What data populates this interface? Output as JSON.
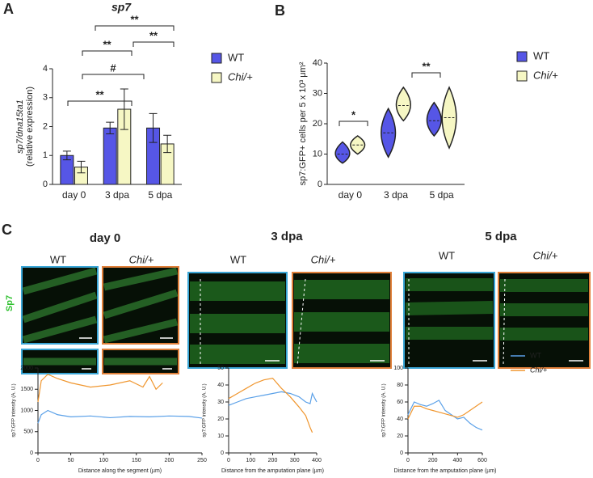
{
  "panels": [
    "A",
    "B",
    "C"
  ],
  "channel": "Sp7",
  "image_labels": [
    "WT",
    "Chi/+",
    "WT",
    "Chi/+",
    "WT",
    "Chi/+"
  ],
  "chart_data": [
    {
      "type": "bar",
      "title": "sp7",
      "y_label": [
        "sp7/dna15ta1",
        "(relative expression)"
      ],
      "categories": [
        "day 0",
        "3 dpa",
        "5 dpa"
      ],
      "series": [
        {
          "name": "WT",
          "color": "#5656e6",
          "values": [
            1.0,
            1.95,
            1.95
          ],
          "errors": [
            0.15,
            0.2,
            0.5
          ]
        },
        {
          "name": "Chi/+",
          "color": "#f6f7c4",
          "values": [
            0.6,
            2.6,
            1.4
          ],
          "errors": [
            0.2,
            0.7,
            0.3
          ]
        }
      ],
      "ylim": [
        0,
        4
      ],
      "yticks": [
        0,
        1,
        2,
        3,
        4
      ],
      "annotations": [
        "**",
        "#",
        "**",
        "**",
        "**"
      ]
    },
    {
      "type": "violin",
      "y_label": "sp7:GFP+ cells per 5 x 10³ μm²",
      "categories": [
        "day 0",
        "3 dpa",
        "5 dpa"
      ],
      "series": [
        {
          "name": "WT",
          "color": "#5656e6",
          "values": [
            10,
            17,
            21
          ],
          "min": [
            7,
            9,
            16
          ],
          "max": [
            14,
            25,
            27
          ]
        },
        {
          "name": "Chi/+",
          "color": "#f6f7c4",
          "values": [
            13,
            26,
            22
          ],
          "min": [
            10,
            21,
            12
          ],
          "max": [
            16,
            32,
            32
          ]
        }
      ],
      "ylim": [
        0,
        40
      ],
      "yticks": [
        0,
        10,
        20,
        30,
        40
      ],
      "annotations": [
        "*",
        "**"
      ]
    },
    {
      "type": "line",
      "title": "day 0",
      "x_label": "Distance along the segment (µm)",
      "y_label": "sp7:GFP intensity (A. U.)",
      "xlim": [
        0,
        250
      ],
      "xticks": [
        0,
        50,
        100,
        150,
        200,
        250
      ],
      "ylim": [
        0,
        2000
      ],
      "yticks": [
        0,
        500,
        1000,
        1500,
        2000
      ],
      "series": [
        {
          "color": "#5aa0e8",
          "x": [
            0,
            5,
            15,
            30,
            50,
            80,
            110,
            140,
            170,
            200,
            230,
            250
          ],
          "values": [
            700,
            900,
            1000,
            900,
            850,
            870,
            830,
            860,
            850,
            870,
            860,
            820
          ]
        },
        {
          "color": "#f0962e",
          "x": [
            0,
            5,
            15,
            30,
            50,
            80,
            110,
            140,
            160,
            170,
            180,
            190
          ],
          "values": [
            1200,
            1700,
            1850,
            1750,
            1650,
            1550,
            1600,
            1700,
            1550,
            1800,
            1500,
            1650
          ]
        }
      ]
    },
    {
      "type": "line",
      "title": "3 dpa",
      "x_label": "Distance from the amputation plane (µm)",
      "y_label": "sp7:GFP intensity (A. U.)",
      "xlim": [
        0,
        400
      ],
      "xticks": [
        0,
        100,
        200,
        300,
        400
      ],
      "ylim": [
        0,
        50
      ],
      "yticks": [
        0,
        10,
        20,
        30,
        40,
        50
      ],
      "series": [
        {
          "color": "#5aa0e8",
          "x": [
            0,
            40,
            80,
            120,
            160,
            200,
            240,
            280,
            320,
            350,
            370,
            380,
            400
          ],
          "values": [
            28,
            30,
            32,
            33,
            34,
            35,
            36,
            35,
            33,
            30,
            29,
            35,
            30
          ]
        },
        {
          "color": "#f0962e",
          "x": [
            0,
            40,
            80,
            120,
            160,
            200,
            240,
            280,
            320,
            350,
            370,
            380
          ],
          "values": [
            32,
            35,
            38,
            41,
            43,
            44,
            38,
            33,
            27,
            22,
            15,
            12
          ]
        }
      ]
    },
    {
      "type": "line",
      "title": "5 dpa",
      "x_label": "Distance from the amputation plane (µm)",
      "y_label": "sp7:GFP intensity (A. U.)",
      "xlim": [
        0,
        600
      ],
      "xticks": [
        0,
        200,
        400,
        600
      ],
      "ylim": [
        0,
        100
      ],
      "yticks": [
        0,
        20,
        40,
        60,
        80,
        100
      ],
      "series": [
        {
          "name": "WT",
          "color": "#5aa0e8",
          "x": [
            0,
            50,
            100,
            150,
            200,
            250,
            300,
            350,
            400,
            450,
            500,
            550,
            600
          ],
          "values": [
            45,
            60,
            57,
            55,
            58,
            62,
            50,
            45,
            40,
            42,
            35,
            30,
            27
          ]
        },
        {
          "name": "Chi/+",
          "color": "#f0962e",
          "x": [
            0,
            50,
            100,
            150,
            200,
            250,
            300,
            350,
            400,
            450,
            500,
            550,
            600
          ],
          "values": [
            40,
            55,
            55,
            52,
            50,
            48,
            46,
            44,
            42,
            45,
            50,
            55,
            60
          ]
        }
      ]
    }
  ]
}
